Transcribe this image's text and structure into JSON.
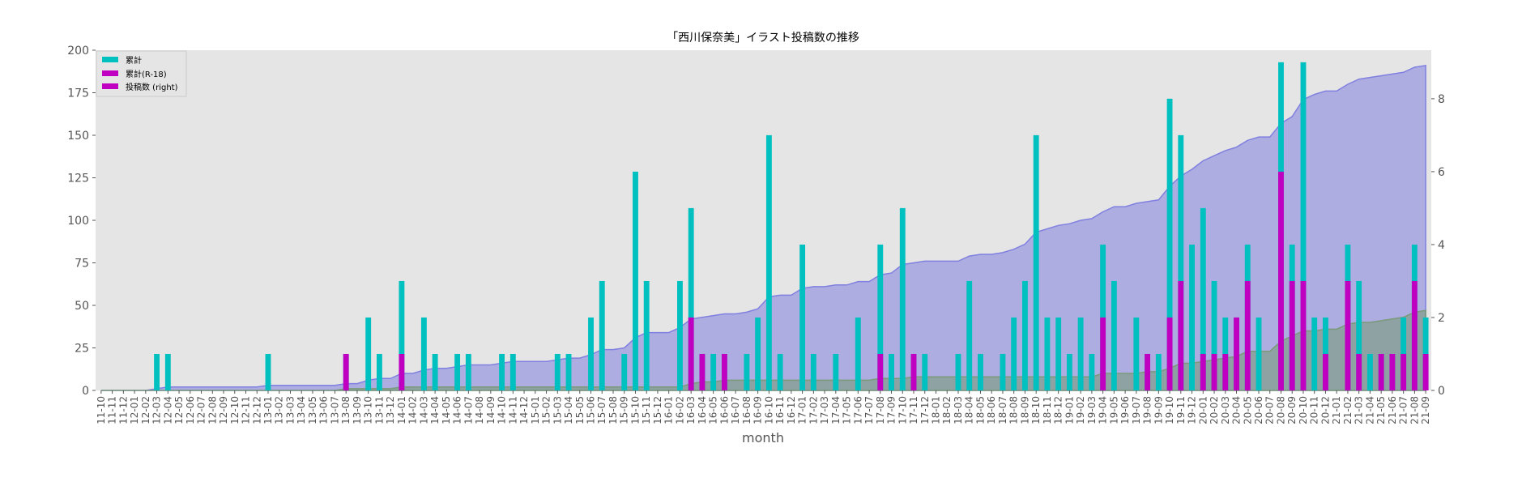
{
  "chart_data": {
    "type": "bar",
    "title": "「西川保奈美」イラスト投稿数の推移",
    "xlabel": "month",
    "ylabel": "",
    "ylim": [
      0,
      200
    ],
    "y_ticks": [
      0,
      25,
      50,
      75,
      100,
      125,
      150,
      175,
      200
    ],
    "y2lim": [
      0,
      9.33
    ],
    "y2_ticks": [
      0,
      2,
      4,
      6,
      8
    ],
    "grid": false,
    "background": "#e5e5e5",
    "legend_position": "top-left",
    "categories": [
      "11-10",
      "11-11",
      "11-12",
      "12-01",
      "12-02",
      "12-03",
      "12-04",
      "12-05",
      "12-06",
      "12-07",
      "12-08",
      "12-09",
      "12-10",
      "12-11",
      "12-12",
      "13-01",
      "13-02",
      "13-03",
      "13-04",
      "13-05",
      "13-06",
      "13-07",
      "13-08",
      "13-09",
      "13-10",
      "13-11",
      "13-12",
      "14-01",
      "14-02",
      "14-03",
      "14-04",
      "14-05",
      "14-06",
      "14-07",
      "14-08",
      "14-09",
      "14-10",
      "14-11",
      "14-12",
      "15-01",
      "15-02",
      "15-03",
      "15-04",
      "15-05",
      "15-06",
      "15-07",
      "15-08",
      "15-09",
      "15-10",
      "15-11",
      "15-12",
      "16-01",
      "16-02",
      "16-03",
      "16-04",
      "16-05",
      "16-06",
      "16-07",
      "16-08",
      "16-09",
      "16-10",
      "16-11",
      "16-12",
      "17-01",
      "17-02",
      "17-03",
      "17-04",
      "17-05",
      "17-06",
      "17-07",
      "17-08",
      "17-09",
      "17-10",
      "17-11",
      "17-12",
      "18-01",
      "18-02",
      "18-03",
      "18-04",
      "18-05",
      "18-06",
      "18-07",
      "18-08",
      "18-09",
      "18-10",
      "18-11",
      "18-12",
      "19-01",
      "19-02",
      "19-03",
      "19-04",
      "19-05",
      "19-06",
      "19-07",
      "19-08",
      "19-09",
      "19-10",
      "19-11",
      "19-12",
      "20-01",
      "20-02",
      "20-03",
      "20-04",
      "20-05",
      "20-06",
      "20-07",
      "20-08",
      "20-09",
      "20-10",
      "20-11",
      "20-12",
      "21-01",
      "21-02",
      "21-03",
      "21-04",
      "21-05",
      "21-06",
      "21-07",
      "21-08",
      "21-09"
    ],
    "series": [
      {
        "name": "累計",
        "kind": "area",
        "axis": "left",
        "color": "#8080e0",
        "values": [
          0,
          0,
          0,
          0,
          0,
          1,
          2,
          2,
          2,
          2,
          2,
          2,
          2,
          2,
          2,
          3,
          3,
          3,
          3,
          3,
          3,
          3,
          4,
          4,
          6,
          7,
          7,
          10,
          10,
          12,
          13,
          13,
          14,
          15,
          15,
          15,
          16,
          17,
          17,
          17,
          17,
          18,
          19,
          19,
          21,
          24,
          24,
          25,
          31,
          34,
          34,
          34,
          37,
          42,
          43,
          44,
          45,
          45,
          46,
          48,
          55,
          56,
          56,
          60,
          61,
          61,
          62,
          62,
          64,
          64,
          68,
          69,
          74,
          75,
          76,
          76,
          76,
          76,
          79,
          80,
          80,
          81,
          83,
          86,
          93,
          95,
          97,
          98,
          100,
          101,
          105,
          108,
          108,
          110,
          111,
          112,
          120,
          126,
          130,
          135,
          138,
          141,
          143,
          147,
          149,
          149,
          157,
          161,
          171,
          174,
          176,
          176,
          180,
          183,
          184,
          185,
          186,
          187,
          190,
          191
        ]
      },
      {
        "name": "累計(R-18)",
        "kind": "area",
        "axis": "left",
        "color": "#7a9a7a",
        "values": [
          0,
          0,
          0,
          0,
          0,
          0,
          0,
          0,
          0,
          0,
          0,
          0,
          0,
          0,
          0,
          0,
          0,
          0,
          0,
          0,
          0,
          0,
          1,
          1,
          1,
          1,
          1,
          2,
          2,
          2,
          2,
          2,
          2,
          2,
          2,
          2,
          2,
          2,
          2,
          2,
          2,
          2,
          2,
          2,
          2,
          2,
          2,
          2,
          2,
          2,
          2,
          2,
          2,
          4,
          5,
          5,
          6,
          6,
          6,
          6,
          6,
          6,
          6,
          6,
          6,
          6,
          6,
          6,
          6,
          6,
          7,
          7,
          7,
          8,
          8,
          8,
          8,
          8,
          8,
          8,
          8,
          8,
          8,
          8,
          8,
          8,
          8,
          8,
          8,
          8,
          10,
          10,
          10,
          10,
          11,
          11,
          13,
          16,
          16,
          17,
          18,
          19,
          20,
          23,
          23,
          23,
          29,
          32,
          35,
          35,
          36,
          36,
          39,
          40,
          40,
          41,
          42,
          43,
          46,
          47
        ]
      },
      {
        "name": "投稿数 (right)",
        "kind": "stacked-bar",
        "axis": "right",
        "colors": {
          "total": "#00c0c0",
          "r18": "#c000c0"
        },
        "values": [
          0,
          0,
          0,
          0,
          0,
          1,
          1,
          0,
          0,
          0,
          0,
          0,
          0,
          0,
          0,
          1,
          0,
          0,
          0,
          0,
          0,
          0,
          1,
          0,
          2,
          1,
          0,
          3,
          0,
          2,
          1,
          0,
          1,
          1,
          0,
          0,
          1,
          1,
          0,
          0,
          0,
          1,
          1,
          0,
          2,
          3,
          0,
          1,
          6,
          3,
          0,
          0,
          3,
          5,
          1,
          1,
          1,
          0,
          1,
          2,
          7,
          1,
          0,
          4,
          1,
          0,
          1,
          0,
          2,
          0,
          4,
          1,
          5,
          1,
          1,
          0,
          0,
          1,
          3,
          1,
          0,
          1,
          2,
          3,
          7,
          2,
          2,
          1,
          2,
          1,
          4,
          3,
          0,
          2,
          1,
          1,
          8,
          7,
          4,
          5,
          3,
          2,
          2,
          4,
          2,
          0,
          9,
          4,
          9,
          2,
          2,
          0,
          4,
          3,
          1,
          1,
          1,
          2,
          4,
          2
        ],
        "r18_values": [
          0,
          0,
          0,
          0,
          0,
          0,
          0,
          0,
          0,
          0,
          0,
          0,
          0,
          0,
          0,
          0,
          0,
          0,
          0,
          0,
          0,
          0,
          1,
          0,
          0,
          0,
          0,
          1,
          0,
          0,
          0,
          0,
          0,
          0,
          0,
          0,
          0,
          0,
          0,
          0,
          0,
          0,
          0,
          0,
          0,
          0,
          0,
          0,
          0,
          0,
          0,
          0,
          0,
          2,
          1,
          0,
          1,
          0,
          0,
          0,
          0,
          0,
          0,
          0,
          0,
          0,
          0,
          0,
          0,
          0,
          1,
          0,
          0,
          1,
          0,
          0,
          0,
          0,
          0,
          0,
          0,
          0,
          0,
          0,
          0,
          0,
          0,
          0,
          0,
          0,
          2,
          0,
          0,
          0,
          1,
          0,
          2,
          3,
          0,
          1,
          1,
          1,
          2,
          3,
          0,
          0,
          6,
          3,
          3,
          0,
          1,
          0,
          3,
          1,
          0,
          1,
          1,
          1,
          3,
          1
        ]
      }
    ],
    "legend": [
      {
        "label": "累計",
        "color": "#00c0c0"
      },
      {
        "label": "累計(R-18)",
        "color": "#c000c0"
      },
      {
        "label": "投稿数 (right)",
        "color": "#c000c0"
      }
    ]
  }
}
